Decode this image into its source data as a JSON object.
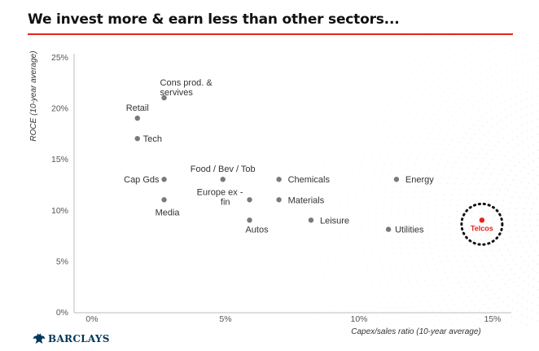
{
  "title": "We invest more & earn less than other sectors...",
  "brand": {
    "name": "BARCLAYS",
    "icon": "eagle-icon",
    "color": "#00395d"
  },
  "colors": {
    "accent": "#e4231b",
    "points": "#7a7a7a",
    "dots_pattern": "#d6d6d6"
  },
  "chart_data": {
    "type": "scatter",
    "xlabel": "Capex/sales ratio (10-year average)",
    "ylabel": "ROCE (10-year average)",
    "xlim": [
      0,
      15
    ],
    "ylim": [
      0,
      25
    ],
    "x_ticks": [
      "0%",
      "5%",
      "10%",
      "15%"
    ],
    "y_ticks": [
      "0%",
      "5%",
      "10%",
      "15%",
      "20%",
      "25%"
    ],
    "grid": false,
    "points": [
      {
        "label": "Cons prod. & servives",
        "x": 2.7,
        "y": 21.0
      },
      {
        "label": "Retail",
        "x": 1.7,
        "y": 19.0
      },
      {
        "label": "Tech",
        "x": 1.7,
        "y": 17.0
      },
      {
        "label": "Cap Gds",
        "x": 2.7,
        "y": 13.0
      },
      {
        "label": "Food / Bev / Tob",
        "x": 4.9,
        "y": 13.0
      },
      {
        "label": "Chemicals",
        "x": 7.0,
        "y": 13.0
      },
      {
        "label": "Energy",
        "x": 11.4,
        "y": 13.0
      },
      {
        "label": "Media",
        "x": 2.7,
        "y": 11.0
      },
      {
        "label": "Europe ex - fin",
        "x": 5.9,
        "y": 11.0
      },
      {
        "label": "Materials",
        "x": 7.0,
        "y": 11.0
      },
      {
        "label": "Autos",
        "x": 5.9,
        "y": 9.0
      },
      {
        "label": "Leisure",
        "x": 8.2,
        "y": 9.0
      },
      {
        "label": "Utilities",
        "x": 11.1,
        "y": 8.1
      },
      {
        "label": "Telcos",
        "x": 14.6,
        "y": 9.0,
        "highlight": true
      }
    ]
  }
}
